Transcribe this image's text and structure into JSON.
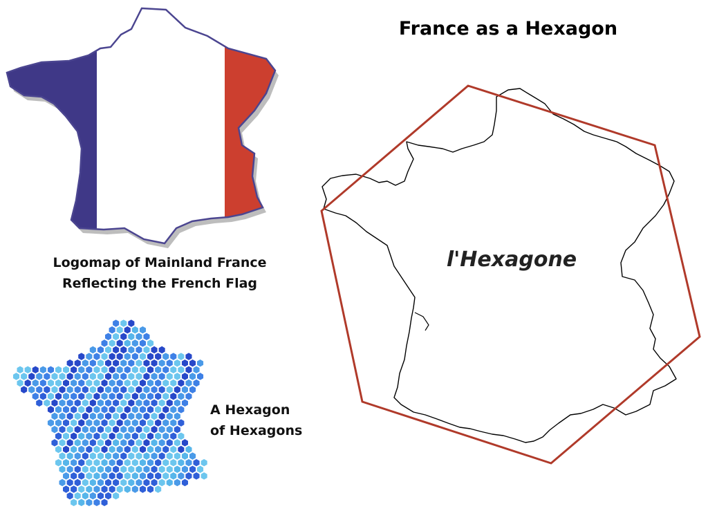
{
  "title": "France as a Hexagon",
  "flag_map": {
    "caption_line1": "Logomap of Mainland France",
    "caption_line2": "Reflecting the French Flag",
    "colors": {
      "blue": "#3f3887",
      "white": "#ffffff",
      "red": "#cc3f2f"
    }
  },
  "hex_map": {
    "caption_line1": "A Hexagon",
    "caption_line2": "of Hexagons",
    "colors": [
      "#2f5fd8",
      "#3e80e6",
      "#4a9ae8",
      "#57b6ea",
      "#2748c9",
      "#6cc6ee"
    ]
  },
  "outline_map": {
    "label": "l'Hexagone",
    "hexagon_color": "#b03a2a",
    "coast_color": "#000000"
  }
}
